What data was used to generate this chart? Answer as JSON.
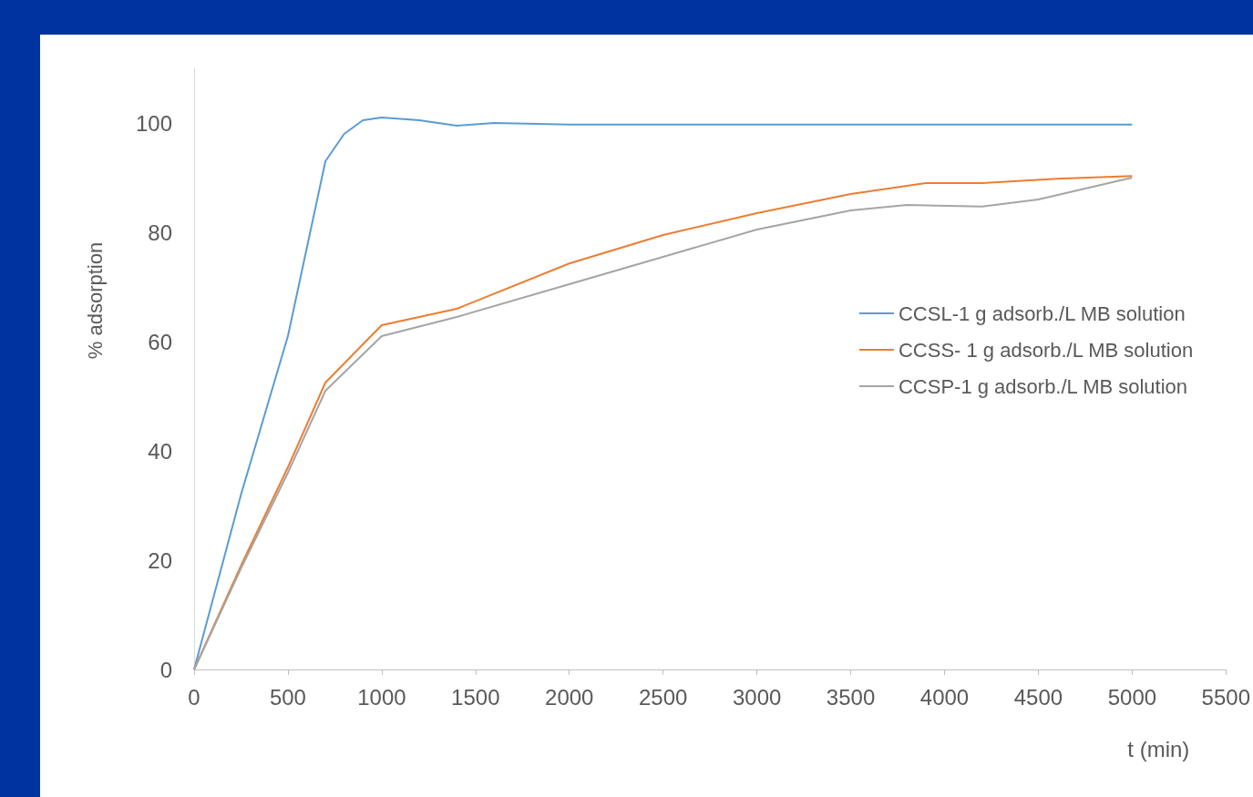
{
  "chart_data": {
    "type": "line",
    "xlabel": "t (min)",
    "ylabel": "% adsorption",
    "xlim": [
      0,
      5500
    ],
    "xticks": [
      0,
      500,
      1000,
      1500,
      2000,
      2500,
      3000,
      3500,
      4000,
      4500,
      5000,
      5500
    ],
    "ylim": [
      0,
      110
    ],
    "yticks": [
      0,
      20,
      40,
      60,
      80,
      100
    ],
    "grid": false,
    "legend": "right",
    "marker": "none",
    "line_style": "solid",
    "series": [
      {
        "name": "CCSL-1 g adsorb./L MB solution",
        "color": "#5b9bd5",
        "x": [
          0,
          250,
          500,
          700,
          800,
          900,
          1000,
          1200,
          1400,
          1600,
          2000,
          3000,
          4000,
          5000
        ],
        "values": [
          0,
          32,
          61,
          93,
          98,
          100.5,
          101,
          100.5,
          99.5,
          100,
          99.7,
          99.7,
          99.7,
          99.7
        ]
      },
      {
        "name": "CCSS- 1 g adsorb./L MB solution",
        "color": "#ed7d31",
        "x": [
          0,
          250,
          500,
          700,
          1000,
          1400,
          2000,
          2500,
          3000,
          3500,
          3900,
          4200,
          4600,
          5000
        ],
        "values": [
          0,
          19,
          37,
          52.5,
          63,
          66,
          74.3,
          79.5,
          83.5,
          87,
          89,
          89,
          89.8,
          90.3
        ]
      },
      {
        "name": "CCSP-1 g adsorb./L MB solution",
        "color": "#a5a5a5",
        "x": [
          0,
          250,
          500,
          700,
          1000,
          1400,
          2000,
          2500,
          3000,
          3500,
          3800,
          4200,
          4500,
          5000
        ],
        "values": [
          0,
          18.5,
          36,
          51,
          61,
          64.5,
          70.5,
          75.5,
          80.5,
          84,
          85,
          84.7,
          86,
          90
        ]
      }
    ]
  }
}
